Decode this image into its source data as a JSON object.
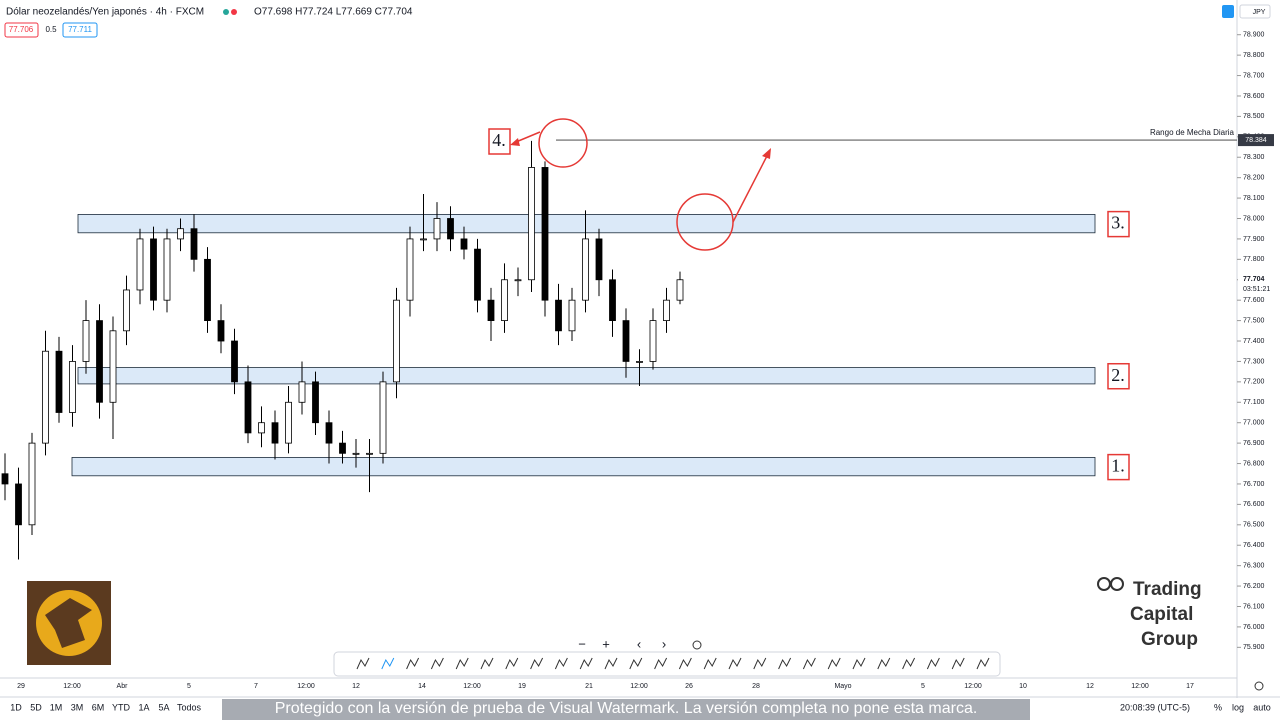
{
  "header": {
    "symbol": "Dólar neozelandés/Yen japonés · 4h · FXCM",
    "ohlc": "O77.698 H77.724 L77.669 C77.704",
    "bid": "77.706",
    "spread": "0.5",
    "ask": "77.711",
    "currency": "JPY"
  },
  "chart_data": {
    "type": "candlestick",
    "open": [
      76.75,
      76.7,
      76.5,
      76.9,
      77.35,
      77.05,
      77.3,
      77.5,
      77.1,
      77.45,
      77.65,
      77.9,
      77.6,
      77.9,
      77.95,
      77.8,
      77.5,
      77.4,
      77.2,
      76.95,
      77.0,
      76.9,
      77.1,
      77.2,
      77.0,
      76.9,
      76.85,
      76.85,
      76.85,
      77.2,
      77.6,
      77.9,
      77.9,
      78.0,
      77.9,
      77.85,
      77.6,
      77.5,
      77.7,
      77.7,
      78.25,
      77.6,
      77.45,
      77.6,
      77.9,
      77.7,
      77.5,
      77.3,
      77.3,
      77.5,
      77.6
    ],
    "high": [
      76.85,
      76.78,
      76.95,
      77.45,
      77.42,
      77.38,
      77.6,
      77.58,
      77.52,
      77.72,
      77.95,
      77.96,
      77.95,
      78.0,
      78.02,
      77.86,
      77.58,
      77.46,
      77.28,
      77.08,
      77.06,
      77.18,
      77.3,
      77.25,
      77.06,
      76.96,
      76.92,
      76.92,
      77.25,
      77.66,
      77.96,
      78.12,
      78.08,
      78.06,
      77.96,
      77.9,
      77.66,
      77.78,
      77.76,
      78.38,
      78.28,
      77.68,
      77.66,
      78.04,
      77.95,
      77.75,
      77.56,
      77.36,
      77.56,
      77.66,
      77.74
    ],
    "low": [
      76.62,
      76.33,
      76.45,
      76.84,
      77.0,
      76.98,
      77.24,
      77.02,
      76.92,
      77.38,
      77.58,
      77.55,
      77.54,
      77.84,
      77.74,
      77.44,
      77.34,
      77.14,
      76.9,
      76.88,
      76.82,
      76.85,
      77.04,
      76.94,
      76.8,
      76.8,
      76.78,
      76.66,
      76.8,
      77.12,
      77.52,
      77.84,
      77.84,
      77.84,
      77.8,
      77.54,
      77.4,
      77.44,
      77.62,
      77.64,
      77.52,
      77.38,
      77.4,
      77.54,
      77.62,
      77.42,
      77.22,
      77.18,
      77.26,
      77.44,
      77.58
    ],
    "close": [
      76.7,
      76.5,
      76.9,
      77.35,
      77.05,
      77.3,
      77.5,
      77.1,
      77.45,
      77.65,
      77.9,
      77.6,
      77.9,
      77.95,
      77.8,
      77.5,
      77.4,
      77.2,
      76.95,
      77.0,
      76.9,
      77.1,
      77.2,
      77.0,
      76.9,
      76.85,
      76.85,
      76.85,
      77.2,
      77.6,
      77.9,
      77.9,
      78.0,
      77.9,
      77.85,
      77.6,
      77.5,
      77.7,
      77.7,
      78.25,
      77.6,
      77.45,
      77.6,
      77.9,
      77.7,
      77.5,
      77.3,
      77.3,
      77.5,
      77.6,
      77.7
    ],
    "ylim": [
      75.74,
      79.07
    ],
    "yticks": [
      {
        "value": 75.9,
        "label": "75.900"
      },
      {
        "value": 76.0,
        "label": "76.000"
      },
      {
        "value": 76.1,
        "label": "76.100"
      },
      {
        "value": 76.2,
        "label": "76.200"
      },
      {
        "value": 76.3,
        "label": "76.300"
      },
      {
        "value": 76.4,
        "label": "76.400"
      },
      {
        "value": 76.5,
        "label": "76.500"
      },
      {
        "value": 76.6,
        "label": "76.600"
      },
      {
        "value": 76.7,
        "label": "76.700"
      },
      {
        "value": 76.8,
        "label": "76.800"
      },
      {
        "value": 76.9,
        "label": "76.900"
      },
      {
        "value": 77.0,
        "label": "77.000"
      },
      {
        "value": 77.1,
        "label": "77.100"
      },
      {
        "value": 77.2,
        "label": "77.200"
      },
      {
        "value": 77.3,
        "label": "77.300"
      },
      {
        "value": 77.4,
        "label": "77.400"
      },
      {
        "value": 77.5,
        "label": "77.500"
      },
      {
        "value": 77.6,
        "label": "77.600"
      },
      {
        "value": 77.7,
        "label": "77.700"
      },
      {
        "value": 77.8,
        "label": "77.800"
      },
      {
        "value": 77.9,
        "label": "77.900"
      },
      {
        "value": 78.0,
        "label": "78.000"
      },
      {
        "value": 78.1,
        "label": "78.100"
      },
      {
        "value": 78.2,
        "label": "78.200"
      },
      {
        "value": 78.3,
        "label": "78.300"
      },
      {
        "value": 78.4,
        "label": "78.400"
      },
      {
        "value": 78.5,
        "label": "78.500"
      },
      {
        "value": 78.6,
        "label": "78.600"
      },
      {
        "value": 78.7,
        "label": "78.700"
      },
      {
        "value": 78.8,
        "label": "78.800"
      },
      {
        "value": 78.9,
        "label": "78.900"
      }
    ],
    "zones": [
      {
        "label": "1.",
        "top": 76.83,
        "bottom": 76.74
      },
      {
        "label": "2.",
        "top": 77.27,
        "bottom": 77.19
      },
      {
        "label": "3.",
        "top": 78.02,
        "bottom": 77.93
      }
    ],
    "level": {
      "value": 78.384,
      "label": "78.384",
      "name": "Rango de Mecha Diaria"
    },
    "last_price": {
      "value": 77.704,
      "label": "77.704",
      "countdown": "03:51:21"
    },
    "annotation": "4.",
    "x_labels": [
      "29",
      "12:00",
      "Abr",
      "5",
      "7",
      "12:00",
      "12",
      "14",
      "12:00",
      "19",
      "21",
      "12:00",
      "26",
      "28",
      "Mayo",
      "5",
      "12:00",
      "10",
      "12",
      "12:00",
      "17"
    ]
  },
  "footer": {
    "ranges": [
      "1D",
      "5D",
      "1M",
      "3M",
      "6M",
      "YTD",
      "1A",
      "5A",
      "Todos"
    ],
    "time": "20:08:39 (UTC-5)",
    "percent": "%",
    "log": "log",
    "auto": "auto",
    "watermark": "Protegido con la versión de prueba de Visual Watermark. La versión completa no pone esta marca."
  },
  "logo": {
    "line1": "Trading",
    "line2": "Capital",
    "line3": "Group"
  }
}
